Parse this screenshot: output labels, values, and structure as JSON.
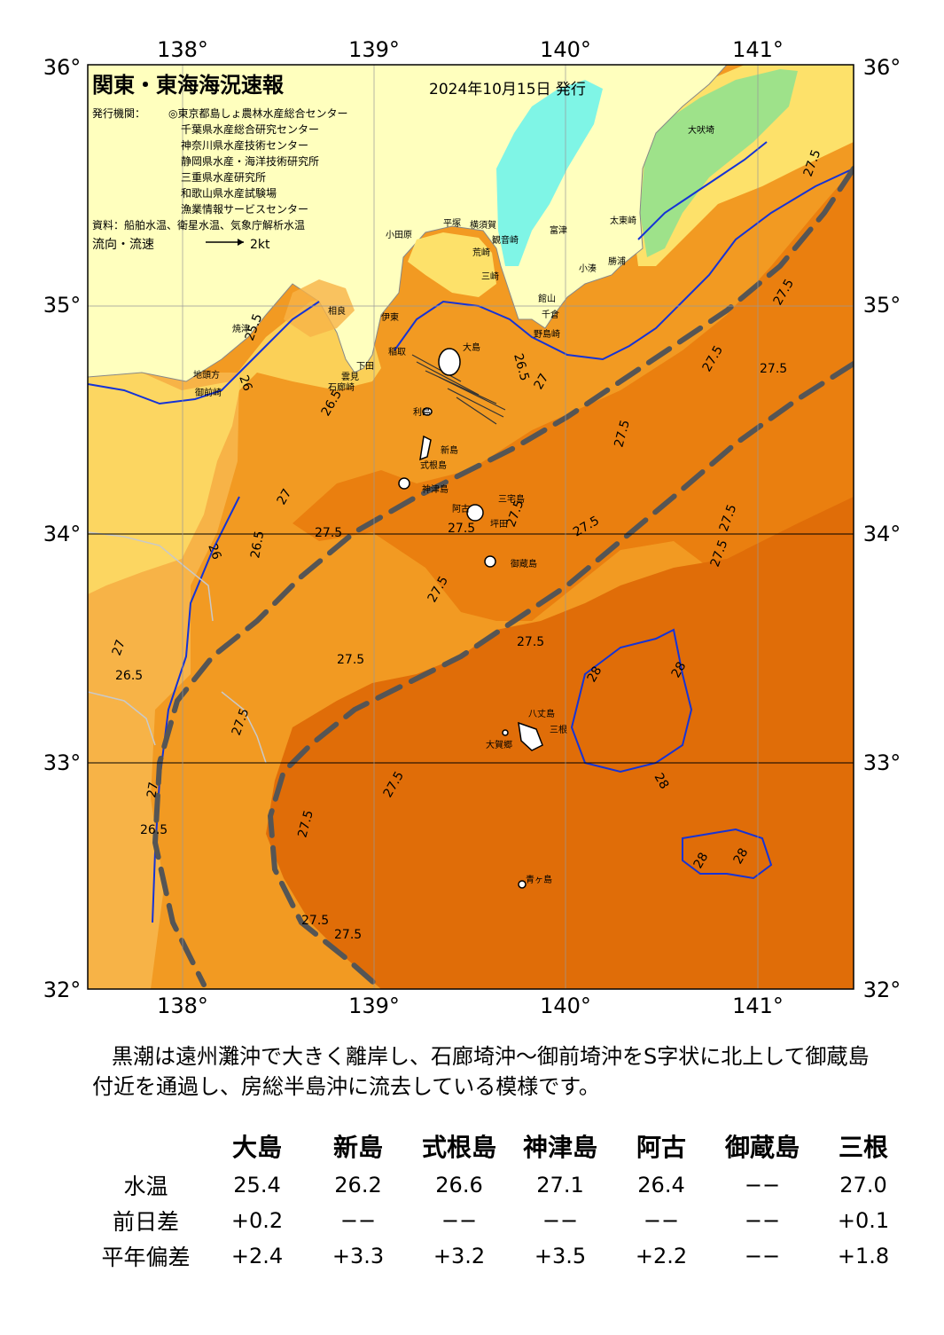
{
  "header": {
    "title": "関東・東海海況速報",
    "issue_date": "2024年10月15日 発行",
    "publisher_label": "発行機関：",
    "publishers": [
      "◎東京都島しょ農林水産総合センター",
      "千葉県水産総合研究センター",
      "神奈川県水産技術センター",
      "静岡県水産・海洋技術研究所",
      "三重県水産研究所",
      "和歌山県水産試験場",
      "漁業情報サービスセンター"
    ],
    "source": "資料：船舶水温、衛星水温、気象庁解析水温",
    "flow_legend": "流向・流速",
    "flow_scale": "2kt"
  },
  "axes": {
    "top_lon": [
      "138°",
      "139°",
      "140°",
      "141°"
    ],
    "bottom_lon": [
      "138°",
      "139°",
      "140°",
      "141°"
    ],
    "left_lat": [
      "36°",
      "35°",
      "34°",
      "33°",
      "32°"
    ],
    "right_lat": [
      "36°",
      "35°",
      "34°",
      "33°",
      "32°"
    ]
  },
  "colors": {
    "land": "#ffffbe",
    "sea_cold": "#7ff5e6",
    "sea_green": "#9ee28a",
    "sea_yellow": "#fde16a",
    "sea_lightorange": "#f7b347",
    "sea_orange": "#f29a22",
    "sea_darkorange": "#ea7f0f",
    "sea_deep": "#e06d08",
    "isotherm_blue": "#1533d6",
    "kuroshio_axis": "#555555"
  },
  "place_names": [
    "大島",
    "利島",
    "新島",
    "式根島",
    "神津島",
    "三宅島",
    "阿古",
    "坪田",
    "御蔵島",
    "八丈島",
    "三根",
    "大賀郷",
    "青ヶ島",
    "大吠埼",
    "太東崎",
    "勝浦",
    "小湊",
    "館山",
    "千倉",
    "野島崎",
    "三崎",
    "横須賀",
    "観音崎",
    "富津",
    "荒崎",
    "平塚",
    "小田原",
    "伊東",
    "稲取",
    "下田",
    "石廊崎",
    "雲見",
    "御前崎",
    "相良",
    "焼津",
    "地頭方"
  ],
  "contour_labels": [
    "25.5",
    "26",
    "26.5",
    "27",
    "27.5",
    "28"
  ],
  "summary_text": "黒潮は遠州灘沖で大きく離岸し、石廊埼沖～御前埼沖をS字状に北上して御蔵島付近を通過し、房総半島沖に流去している模様です。",
  "table": {
    "headers": [
      "大島",
      "新島",
      "式根島",
      "神津島",
      "阿古",
      "御蔵島",
      "三根"
    ],
    "rows": [
      {
        "label": "水温",
        "values": [
          "25.4",
          "26.2",
          "26.6",
          "27.1",
          "26.4",
          "−−",
          "27.0"
        ]
      },
      {
        "label": "前日差",
        "values": [
          "+0.2",
          "−−",
          "−−",
          "−−",
          "−−",
          "−−",
          "+0.1"
        ]
      },
      {
        "label": "平年偏差",
        "values": [
          "+2.4",
          "+3.3",
          "+3.2",
          "+3.5",
          "+2.2",
          "−−",
          "+1.8"
        ]
      }
    ]
  }
}
